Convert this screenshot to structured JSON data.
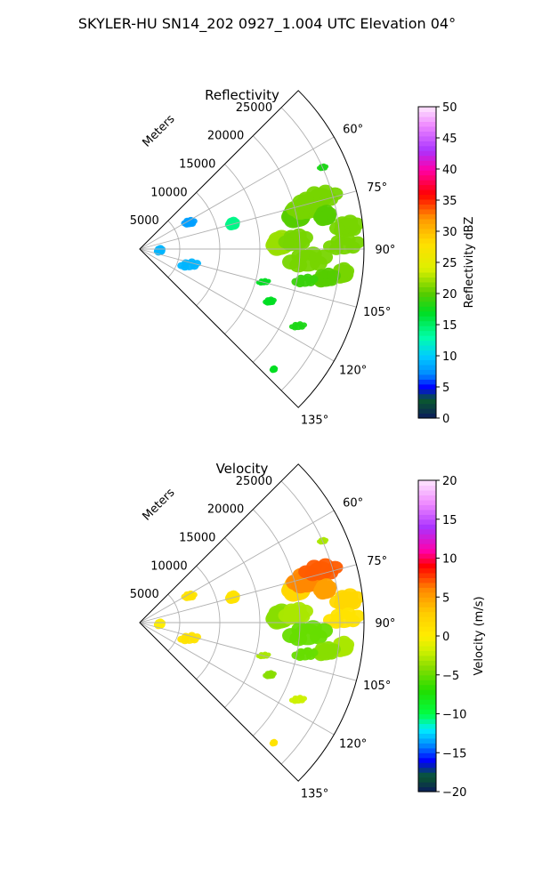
{
  "figure": {
    "suptitle": "SKYLER-HU  SN14_202  0927_1.004 UTC Elevation 04°"
  },
  "chart_data": [
    {
      "type": "polar-sector-radar",
      "title": "Reflectivity",
      "range_label": "Meters",
      "range_max": 28000,
      "range_ticks": [
        "5000",
        "10000",
        "15000",
        "20000",
        "25000"
      ],
      "range_tick_values": [
        5000,
        10000,
        15000,
        20000,
        25000
      ],
      "azimuth_min": 45,
      "azimuth_max": 135,
      "angle_ticks": [
        "60°",
        "75°",
        "90°",
        "105°",
        "120°",
        "135°"
      ],
      "angle_tick_values": [
        60,
        75,
        90,
        105,
        120,
        135
      ],
      "grid": true,
      "colorbar": {
        "label": "Reflectivity dBZ",
        "min": 0,
        "max": 50,
        "ticks": [
          "0",
          "5",
          "10",
          "15",
          "20",
          "25",
          "30",
          "35",
          "40",
          "45",
          "50"
        ],
        "tick_values": [
          0,
          5,
          10,
          15,
          20,
          25,
          30,
          35,
          40,
          45,
          50
        ],
        "color_stops": [
          {
            "v": 0,
            "c": "#0b1b5c"
          },
          {
            "v": 3,
            "c": "#0a5a2e"
          },
          {
            "v": 5,
            "c": "#0000ff"
          },
          {
            "v": 7,
            "c": "#0088ff"
          },
          {
            "v": 10,
            "c": "#00ccff"
          },
          {
            "v": 13,
            "c": "#00ffaa"
          },
          {
            "v": 17,
            "c": "#00dd22"
          },
          {
            "v": 20,
            "c": "#55cc00"
          },
          {
            "v": 24,
            "c": "#ddf000"
          },
          {
            "v": 28,
            "c": "#ffe000"
          },
          {
            "v": 32,
            "c": "#ff9900"
          },
          {
            "v": 36,
            "c": "#ff0000"
          },
          {
            "v": 40,
            "c": "#ff00aa"
          },
          {
            "v": 43,
            "c": "#aa33ff"
          },
          {
            "v": 47,
            "c": "#ee88ff"
          },
          {
            "v": 50,
            "c": "#ffe6ff"
          }
        ]
      },
      "echo_regions": [
        {
          "az": 78,
          "r": 20000,
          "s": 1800,
          "value": 20
        },
        {
          "az": 76,
          "r": 21500,
          "s": 1800,
          "value": 21
        },
        {
          "az": 74,
          "r": 23500,
          "s": 1500,
          "value": 21
        },
        {
          "az": 80,
          "r": 23500,
          "s": 1400,
          "value": 20
        },
        {
          "az": 84,
          "r": 26000,
          "s": 1500,
          "value": 21
        },
        {
          "az": 89,
          "r": 25500,
          "s": 1400,
          "value": 21
        },
        {
          "az": 88,
          "r": 17500,
          "s": 1700,
          "value": 22
        },
        {
          "az": 87,
          "r": 19500,
          "s": 1500,
          "value": 21
        },
        {
          "az": 94,
          "r": 21000,
          "s": 1700,
          "value": 21
        },
        {
          "az": 97,
          "r": 25500,
          "s": 1400,
          "value": 21
        },
        {
          "az": 99,
          "r": 23500,
          "s": 1300,
          "value": 20
        },
        {
          "az": 101,
          "r": 21000,
          "s": 900,
          "value": 19
        },
        {
          "az": 75,
          "r": 12000,
          "s": 900,
          "value": 14
        },
        {
          "az": 62,
          "r": 7000,
          "s": 700,
          "value": 8
        },
        {
          "az": 108,
          "r": 6500,
          "s": 800,
          "value": 9
        },
        {
          "az": 95,
          "r": 2500,
          "s": 700,
          "value": 9
        },
        {
          "az": 66,
          "r": 25000,
          "s": 500,
          "value": 18
        },
        {
          "az": 116,
          "r": 22000,
          "s": 600,
          "value": 18
        },
        {
          "az": 132,
          "r": 22500,
          "s": 500,
          "value": 17
        },
        {
          "az": 112,
          "r": 17500,
          "s": 600,
          "value": 17
        },
        {
          "az": 105,
          "r": 16000,
          "s": 500,
          "value": 17
        }
      ]
    },
    {
      "type": "polar-sector-radar",
      "title": "Velocity",
      "range_label": "Meters",
      "range_max": 28000,
      "range_ticks": [
        "5000",
        "10000",
        "15000",
        "20000",
        "25000"
      ],
      "range_tick_values": [
        5000,
        10000,
        15000,
        20000,
        25000
      ],
      "azimuth_min": 45,
      "azimuth_max": 135,
      "angle_ticks": [
        "60°",
        "75°",
        "90°",
        "105°",
        "120°",
        "135°"
      ],
      "angle_tick_values": [
        60,
        75,
        90,
        105,
        120,
        135
      ],
      "grid": true,
      "colorbar": {
        "label": "Velocity (m/s)",
        "min": -20,
        "max": 20,
        "ticks": [
          "−20",
          "−15",
          "−10",
          "−5",
          "0",
          "5",
          "10",
          "15",
          "20"
        ],
        "tick_values": [
          -20,
          -15,
          -10,
          -5,
          0,
          5,
          10,
          15,
          20
        ],
        "color_stops": [
          {
            "v": -20,
            "c": "#0b1b5c"
          },
          {
            "v": -18,
            "c": "#0a5a2e"
          },
          {
            "v": -16,
            "c": "#0000ff"
          },
          {
            "v": -14,
            "c": "#0088ff"
          },
          {
            "v": -12,
            "c": "#00eeff"
          },
          {
            "v": -10,
            "c": "#00ff44"
          },
          {
            "v": -7,
            "c": "#22dd00"
          },
          {
            "v": -4,
            "c": "#88dd00"
          },
          {
            "v": -2,
            "c": "#ccf000"
          },
          {
            "v": 0,
            "c": "#ffee00"
          },
          {
            "v": 3,
            "c": "#ffcc00"
          },
          {
            "v": 6,
            "c": "#ff8800"
          },
          {
            "v": 9,
            "c": "#ff0000"
          },
          {
            "v": 11,
            "c": "#ff00aa"
          },
          {
            "v": 14,
            "c": "#aa33ff"
          },
          {
            "v": 17,
            "c": "#ee88ff"
          },
          {
            "v": 20,
            "c": "#ffe6ff"
          }
        ]
      },
      "echo_regions": [
        {
          "az": 78,
          "r": 20000,
          "s": 1800,
          "value": 2
        },
        {
          "az": 76,
          "r": 21500,
          "s": 1800,
          "value": 6
        },
        {
          "az": 74,
          "r": 23500,
          "s": 1500,
          "value": 7
        },
        {
          "az": 80,
          "r": 23500,
          "s": 1400,
          "value": 5
        },
        {
          "az": 84,
          "r": 26000,
          "s": 1500,
          "value": 2
        },
        {
          "az": 89,
          "r": 25500,
          "s": 1400,
          "value": 1
        },
        {
          "az": 88,
          "r": 17500,
          "s": 1700,
          "value": -4
        },
        {
          "az": 87,
          "r": 19500,
          "s": 1500,
          "value": -3
        },
        {
          "az": 94,
          "r": 21000,
          "s": 1700,
          "value": -5
        },
        {
          "az": 97,
          "r": 25500,
          "s": 1400,
          "value": -3
        },
        {
          "az": 99,
          "r": 23500,
          "s": 1300,
          "value": -4
        },
        {
          "az": 101,
          "r": 21000,
          "s": 900,
          "value": -5
        },
        {
          "az": 75,
          "r": 12000,
          "s": 900,
          "value": 1
        },
        {
          "az": 62,
          "r": 7000,
          "s": 700,
          "value": 1
        },
        {
          "az": 108,
          "r": 6500,
          "s": 800,
          "value": 1
        },
        {
          "az": 95,
          "r": 2500,
          "s": 700,
          "value": 0
        },
        {
          "az": 66,
          "r": 25000,
          "s": 500,
          "value": -3
        },
        {
          "az": 116,
          "r": 22000,
          "s": 600,
          "value": -2
        },
        {
          "az": 132,
          "r": 22500,
          "s": 500,
          "value": 1
        },
        {
          "az": 112,
          "r": 17500,
          "s": 600,
          "value": -4
        },
        {
          "az": 105,
          "r": 16000,
          "s": 500,
          "value": -3
        }
      ]
    }
  ]
}
